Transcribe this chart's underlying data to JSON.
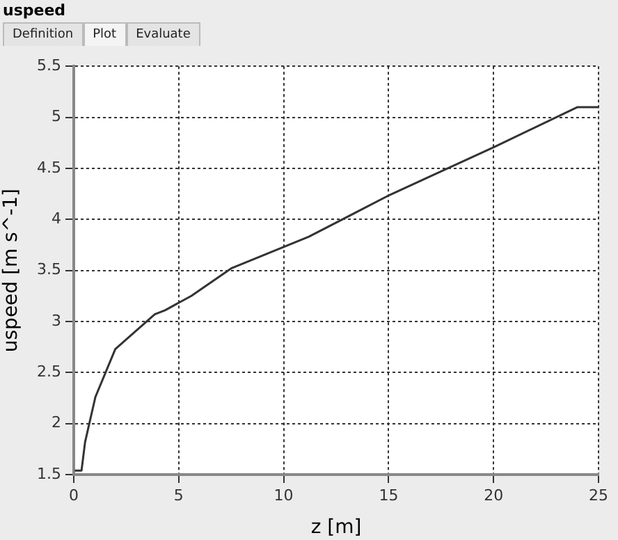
{
  "chart_data": {
    "type": "line",
    "title": "uspeed",
    "annotations": [
      "Definition",
      "Plot",
      "Evaluate"
    ],
    "xlabel": "z [m]",
    "ylabel": "uspeed [m s^-1]",
    "x": [
      0.05,
      0.37,
      0.54,
      1.03,
      1.98,
      3.86,
      4.35,
      5.6,
      7.5,
      11.2,
      15.06,
      20.04,
      24.0,
      25
    ],
    "series": [
      {
        "color": "#333333",
        "values": [
          1.54,
          1.54,
          1.82,
          2.26,
          2.73,
          3.07,
          3.11,
          3.25,
          3.52,
          3.83,
          4.24,
          4.71,
          5.1,
          5.1
        ]
      }
    ],
    "xlim": [
      0,
      25
    ],
    "xticks": [
      0,
      5,
      10,
      15,
      20,
      25
    ],
    "ylim": [
      1.5,
      5.5
    ],
    "yticks": [
      1.5,
      2,
      2.5,
      3,
      3.5,
      4,
      4.5,
      5,
      5.5
    ],
    "grid": true,
    "marker": "none",
    "legend": false
  }
}
